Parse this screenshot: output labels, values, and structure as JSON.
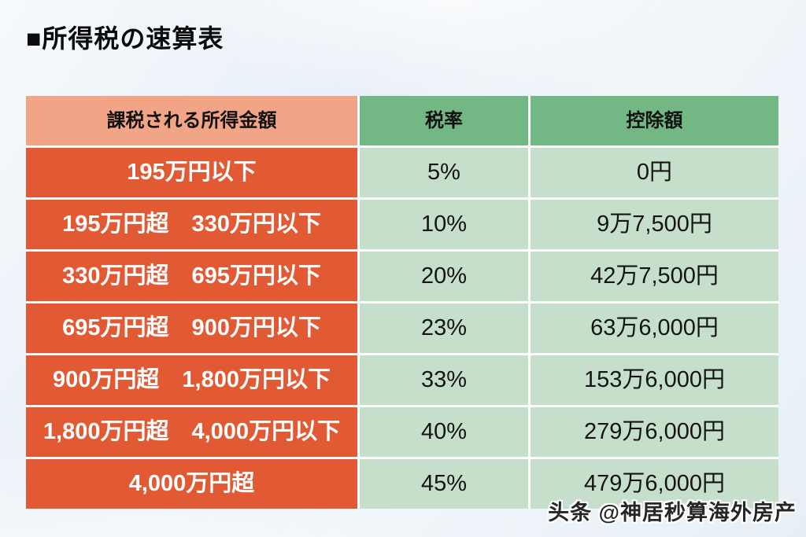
{
  "page": {
    "title": "■所得税の速算表",
    "watermark": "头条 @神居秒算海外房产"
  },
  "colors": {
    "orange": "#e15a33",
    "salmon": "#f2a487",
    "green": "#73b884",
    "lightGreen": "#c5dfca",
    "background": "#eaf1f8"
  },
  "table": {
    "headers": [
      "課税される所得金額",
      "税率",
      "控除額"
    ],
    "rows": [
      {
        "income": "195万円以下",
        "rate": "5%",
        "deduction": "0円"
      },
      {
        "income": "195万円超　330万円以下",
        "rate": "10%",
        "deduction": "9万7,500円"
      },
      {
        "income": "330万円超　695万円以下",
        "rate": "20%",
        "deduction": "42万7,500円"
      },
      {
        "income": "695万円超　900万円以下",
        "rate": "23%",
        "deduction": "63万6,000円"
      },
      {
        "income": "900万円超　1,800万円以下",
        "rate": "33%",
        "deduction": "153万6,000円"
      },
      {
        "income": "1,800万円超　4,000万円以下",
        "rate": "40%",
        "deduction": "279万6,000円"
      },
      {
        "income": "4,000万円超",
        "rate": "45%",
        "deduction": "479万6,000円"
      }
    ]
  },
  "chart_data": {
    "type": "table",
    "title": "所得税の速算表",
    "columns": [
      "課税される所得金額",
      "税率",
      "控除額"
    ],
    "rows": [
      [
        "195万円以下",
        "5%",
        "0円"
      ],
      [
        "195万円超　330万円以下",
        "10%",
        "9万7,500円"
      ],
      [
        "330万円超　695万円以下",
        "20%",
        "42万7,500円"
      ],
      [
        "695万円超　900万円以下",
        "23%",
        "63万6,000円"
      ],
      [
        "900万円超　1,800万円以下",
        "33%",
        "153万6,000円"
      ],
      [
        "1,800万円超　4,000万円以下",
        "40%",
        "279万6,000円"
      ],
      [
        "4,000万円超",
        "45%",
        "479万6,000円"
      ]
    ],
    "rates_percent": [
      5,
      10,
      20,
      23,
      33,
      40,
      45
    ],
    "deductions_yen": [
      0,
      97500,
      427500,
      636000,
      1536000,
      2796000,
      4796000
    ]
  }
}
